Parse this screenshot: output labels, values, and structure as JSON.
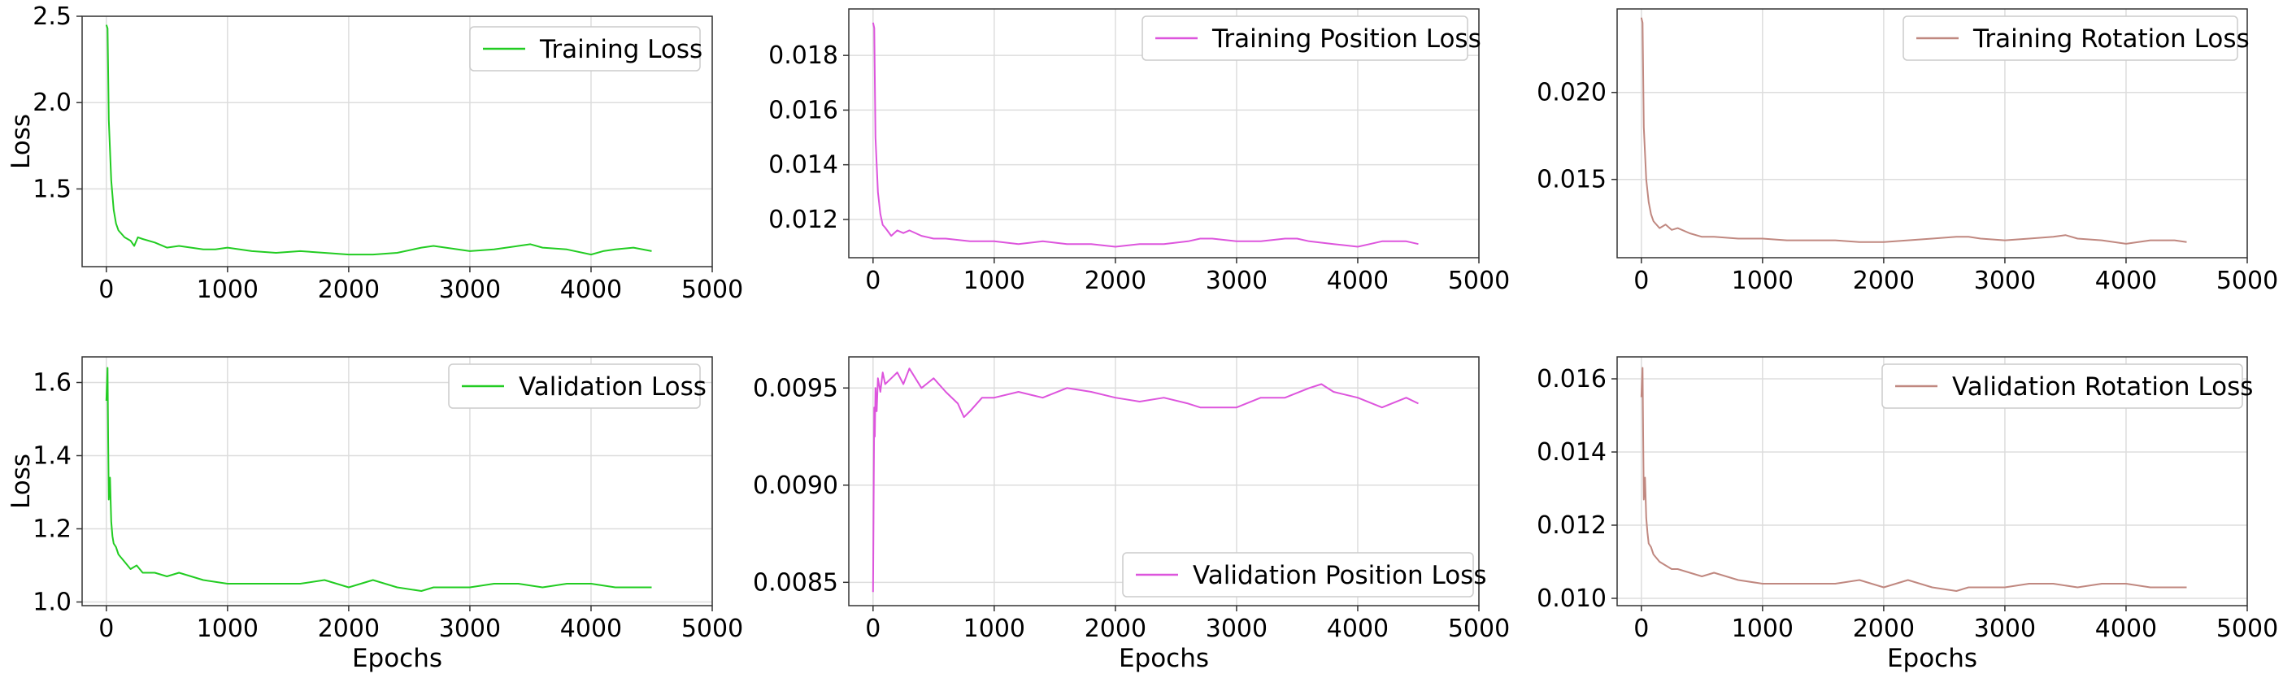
{
  "chart_data": [
    {
      "type": "line",
      "title": "",
      "xlabel": "",
      "ylabel": "Loss",
      "xlim": [
        -200,
        5000
      ],
      "ylim": [
        1.05,
        2.5
      ],
      "xticks": [
        0,
        1000,
        2000,
        3000,
        4000,
        5000
      ],
      "xtick_labels": [
        "0",
        "1000",
        "2000",
        "3000",
        "4000",
        "5000"
      ],
      "yticks": [
        1.5,
        2.0,
        2.5
      ],
      "ytick_labels": [
        "1.5",
        "2.0",
        "2.5"
      ],
      "grid": true,
      "legend_position": "top-right",
      "series": [
        {
          "name": "Training Loss",
          "color": "#22cc22",
          "x": [
            0,
            10,
            20,
            40,
            60,
            80,
            100,
            150,
            200,
            230,
            260,
            300,
            400,
            500,
            600,
            700,
            800,
            900,
            1000,
            1200,
            1400,
            1600,
            1800,
            2000,
            2200,
            2400,
            2600,
            2700,
            2800,
            3000,
            3200,
            3400,
            3500,
            3600,
            3800,
            4000,
            4100,
            4200,
            4350,
            4500
          ],
          "y": [
            2.45,
            2.43,
            1.9,
            1.55,
            1.38,
            1.3,
            1.26,
            1.22,
            1.2,
            1.17,
            1.22,
            1.21,
            1.19,
            1.16,
            1.17,
            1.16,
            1.15,
            1.15,
            1.16,
            1.14,
            1.13,
            1.14,
            1.13,
            1.12,
            1.12,
            1.13,
            1.16,
            1.17,
            1.16,
            1.14,
            1.15,
            1.17,
            1.18,
            1.16,
            1.15,
            1.12,
            1.14,
            1.15,
            1.16,
            1.14
          ]
        }
      ]
    },
    {
      "type": "line",
      "title": "",
      "xlabel": "",
      "ylabel": "",
      "xlim": [
        -200,
        5000
      ],
      "ylim": [
        0.0106,
        0.0197
      ],
      "xticks": [
        0,
        1000,
        2000,
        3000,
        4000,
        5000
      ],
      "xtick_labels": [
        "0",
        "1000",
        "2000",
        "3000",
        "4000",
        "5000"
      ],
      "yticks": [
        0.012,
        0.014,
        0.016,
        0.018
      ],
      "ytick_labels": [
        "0.012",
        "0.014",
        "0.016",
        "0.018"
      ],
      "grid": true,
      "legend_position": "top-right",
      "series": [
        {
          "name": "Training Position Loss",
          "color": "#dd55dd",
          "x": [
            0,
            10,
            20,
            40,
            60,
            80,
            100,
            150,
            200,
            250,
            300,
            400,
            500,
            600,
            800,
            1000,
            1200,
            1400,
            1600,
            1800,
            2000,
            2200,
            2400,
            2600,
            2700,
            2800,
            3000,
            3200,
            3400,
            3500,
            3600,
            3800,
            4000,
            4100,
            4200,
            4400,
            4500
          ],
          "y": [
            0.0192,
            0.019,
            0.015,
            0.013,
            0.0122,
            0.0118,
            0.0117,
            0.0114,
            0.0116,
            0.0115,
            0.0116,
            0.0114,
            0.0113,
            0.0113,
            0.0112,
            0.0112,
            0.0111,
            0.0112,
            0.0111,
            0.0111,
            0.011,
            0.0111,
            0.0111,
            0.0112,
            0.0113,
            0.0113,
            0.0112,
            0.0112,
            0.0113,
            0.0113,
            0.0112,
            0.0111,
            0.011,
            0.0111,
            0.0112,
            0.0112,
            0.0111
          ]
        }
      ]
    },
    {
      "type": "line",
      "title": "",
      "xlabel": "",
      "ylabel": "",
      "xlim": [
        -200,
        5000
      ],
      "ylim": [
        0.0105,
        0.0248
      ],
      "xticks": [
        0,
        1000,
        2000,
        3000,
        4000,
        5000
      ],
      "xtick_labels": [
        "0",
        "1000",
        "2000",
        "3000",
        "4000",
        "5000"
      ],
      "yticks": [
        0.015,
        0.02
      ],
      "ytick_labels": [
        "0.015",
        "0.020"
      ],
      "grid": true,
      "legend_position": "top-right",
      "series": [
        {
          "name": "Training Rotation Loss",
          "color": "#c08880",
          "x": [
            0,
            10,
            20,
            40,
            60,
            80,
            100,
            150,
            200,
            250,
            300,
            400,
            500,
            600,
            800,
            1000,
            1200,
            1400,
            1600,
            1800,
            2000,
            2200,
            2400,
            2600,
            2700,
            2800,
            3000,
            3200,
            3400,
            3500,
            3600,
            3800,
            4000,
            4100,
            4200,
            4400,
            4500
          ],
          "y": [
            0.0243,
            0.024,
            0.018,
            0.015,
            0.0137,
            0.013,
            0.0126,
            0.0122,
            0.0124,
            0.0121,
            0.0122,
            0.0119,
            0.0117,
            0.0117,
            0.0116,
            0.0116,
            0.0115,
            0.0115,
            0.0115,
            0.0114,
            0.0114,
            0.0115,
            0.0116,
            0.0117,
            0.0117,
            0.0116,
            0.0115,
            0.0116,
            0.0117,
            0.0118,
            0.0116,
            0.0115,
            0.0113,
            0.0114,
            0.0115,
            0.0115,
            0.0114
          ]
        }
      ]
    },
    {
      "type": "line",
      "title": "",
      "xlabel": "Epochs",
      "ylabel": "Loss",
      "xlim": [
        -200,
        5000
      ],
      "ylim": [
        0.99,
        1.67
      ],
      "xticks": [
        0,
        1000,
        2000,
        3000,
        4000,
        5000
      ],
      "xtick_labels": [
        "0",
        "1000",
        "2000",
        "3000",
        "4000",
        "5000"
      ],
      "yticks": [
        1.0,
        1.2,
        1.4,
        1.6
      ],
      "ytick_labels": [
        "1.0",
        "1.2",
        "1.4",
        "1.6"
      ],
      "grid": true,
      "legend_position": "top-right",
      "series": [
        {
          "name": "Validation Loss",
          "color": "#22cc22",
          "x": [
            0,
            10,
            15,
            20,
            30,
            40,
            50,
            60,
            80,
            100,
            150,
            200,
            250,
            300,
            400,
            500,
            600,
            800,
            1000,
            1200,
            1400,
            1600,
            1800,
            2000,
            2200,
            2400,
            2600,
            2700,
            2800,
            3000,
            3200,
            3400,
            3600,
            3800,
            4000,
            4200,
            4400,
            4500
          ],
          "y": [
            1.55,
            1.64,
            1.45,
            1.28,
            1.34,
            1.22,
            1.18,
            1.16,
            1.15,
            1.13,
            1.11,
            1.09,
            1.1,
            1.08,
            1.08,
            1.07,
            1.08,
            1.06,
            1.05,
            1.05,
            1.05,
            1.05,
            1.06,
            1.04,
            1.06,
            1.04,
            1.03,
            1.04,
            1.04,
            1.04,
            1.05,
            1.05,
            1.04,
            1.05,
            1.05,
            1.04,
            1.04,
            1.04
          ]
        }
      ]
    },
    {
      "type": "line",
      "title": "",
      "xlabel": "Epochs",
      "ylabel": "",
      "xlim": [
        -200,
        5000
      ],
      "ylim": [
        0.00838,
        0.00966
      ],
      "xticks": [
        0,
        1000,
        2000,
        3000,
        4000,
        5000
      ],
      "xtick_labels": [
        "0",
        "1000",
        "2000",
        "3000",
        "4000",
        "5000"
      ],
      "yticks": [
        0.0085,
        0.009,
        0.0095
      ],
      "ytick_labels": [
        "0.0085",
        "0.0090",
        "0.0095"
      ],
      "grid": true,
      "legend_position": "bottom-right",
      "series": [
        {
          "name": "Validation Position Loss",
          "color": "#dd55dd",
          "x": [
            0,
            10,
            15,
            20,
            30,
            40,
            60,
            80,
            100,
            150,
            200,
            250,
            300,
            400,
            500,
            600,
            700,
            750,
            800,
            900,
            1000,
            1200,
            1400,
            1600,
            1800,
            2000,
            2200,
            2400,
            2600,
            2700,
            2800,
            3000,
            3200,
            3400,
            3600,
            3700,
            3800,
            4000,
            4200,
            4400,
            4500
          ],
          "y": [
            0.00845,
            0.0094,
            0.00925,
            0.0095,
            0.00938,
            0.00955,
            0.00948,
            0.00958,
            0.00952,
            0.00955,
            0.00958,
            0.00952,
            0.0096,
            0.0095,
            0.00955,
            0.00948,
            0.00942,
            0.00935,
            0.00938,
            0.00945,
            0.00945,
            0.00948,
            0.00945,
            0.0095,
            0.00948,
            0.00945,
            0.00943,
            0.00945,
            0.00942,
            0.0094,
            0.0094,
            0.0094,
            0.00945,
            0.00945,
            0.0095,
            0.00952,
            0.00948,
            0.00945,
            0.0094,
            0.00945,
            0.00942
          ]
        }
      ]
    },
    {
      "type": "line",
      "title": "",
      "xlabel": "Epochs",
      "ylabel": "",
      "xlim": [
        -200,
        5000
      ],
      "ylim": [
        0.0098,
        0.0166
      ],
      "xticks": [
        0,
        1000,
        2000,
        3000,
        4000,
        5000
      ],
      "xtick_labels": [
        "0",
        "1000",
        "2000",
        "3000",
        "4000",
        "5000"
      ],
      "yticks": [
        0.01,
        0.012,
        0.014,
        0.016
      ],
      "ytick_labels": [
        "0.010",
        "0.012",
        "0.014",
        "0.016"
      ],
      "grid": true,
      "legend_position": "top-right",
      "series": [
        {
          "name": "Validation Rotation Loss",
          "color": "#c08880",
          "x": [
            0,
            10,
            15,
            20,
            30,
            40,
            50,
            60,
            80,
            100,
            150,
            200,
            250,
            300,
            400,
            500,
            600,
            800,
            1000,
            1200,
            1400,
            1600,
            1800,
            2000,
            2200,
            2400,
            2600,
            2700,
            2800,
            3000,
            3200,
            3400,
            3600,
            3800,
            4000,
            4200,
            4400,
            4500
          ],
          "y": [
            0.0155,
            0.0163,
            0.0145,
            0.0127,
            0.0133,
            0.0122,
            0.0118,
            0.0115,
            0.0114,
            0.0112,
            0.011,
            0.0109,
            0.0108,
            0.0108,
            0.0107,
            0.0106,
            0.0107,
            0.0105,
            0.0104,
            0.0104,
            0.0104,
            0.0104,
            0.0105,
            0.0103,
            0.0105,
            0.0103,
            0.0102,
            0.0103,
            0.0103,
            0.0103,
            0.0104,
            0.0104,
            0.0103,
            0.0104,
            0.0104,
            0.0103,
            0.0103,
            0.0103
          ]
        }
      ]
    }
  ]
}
